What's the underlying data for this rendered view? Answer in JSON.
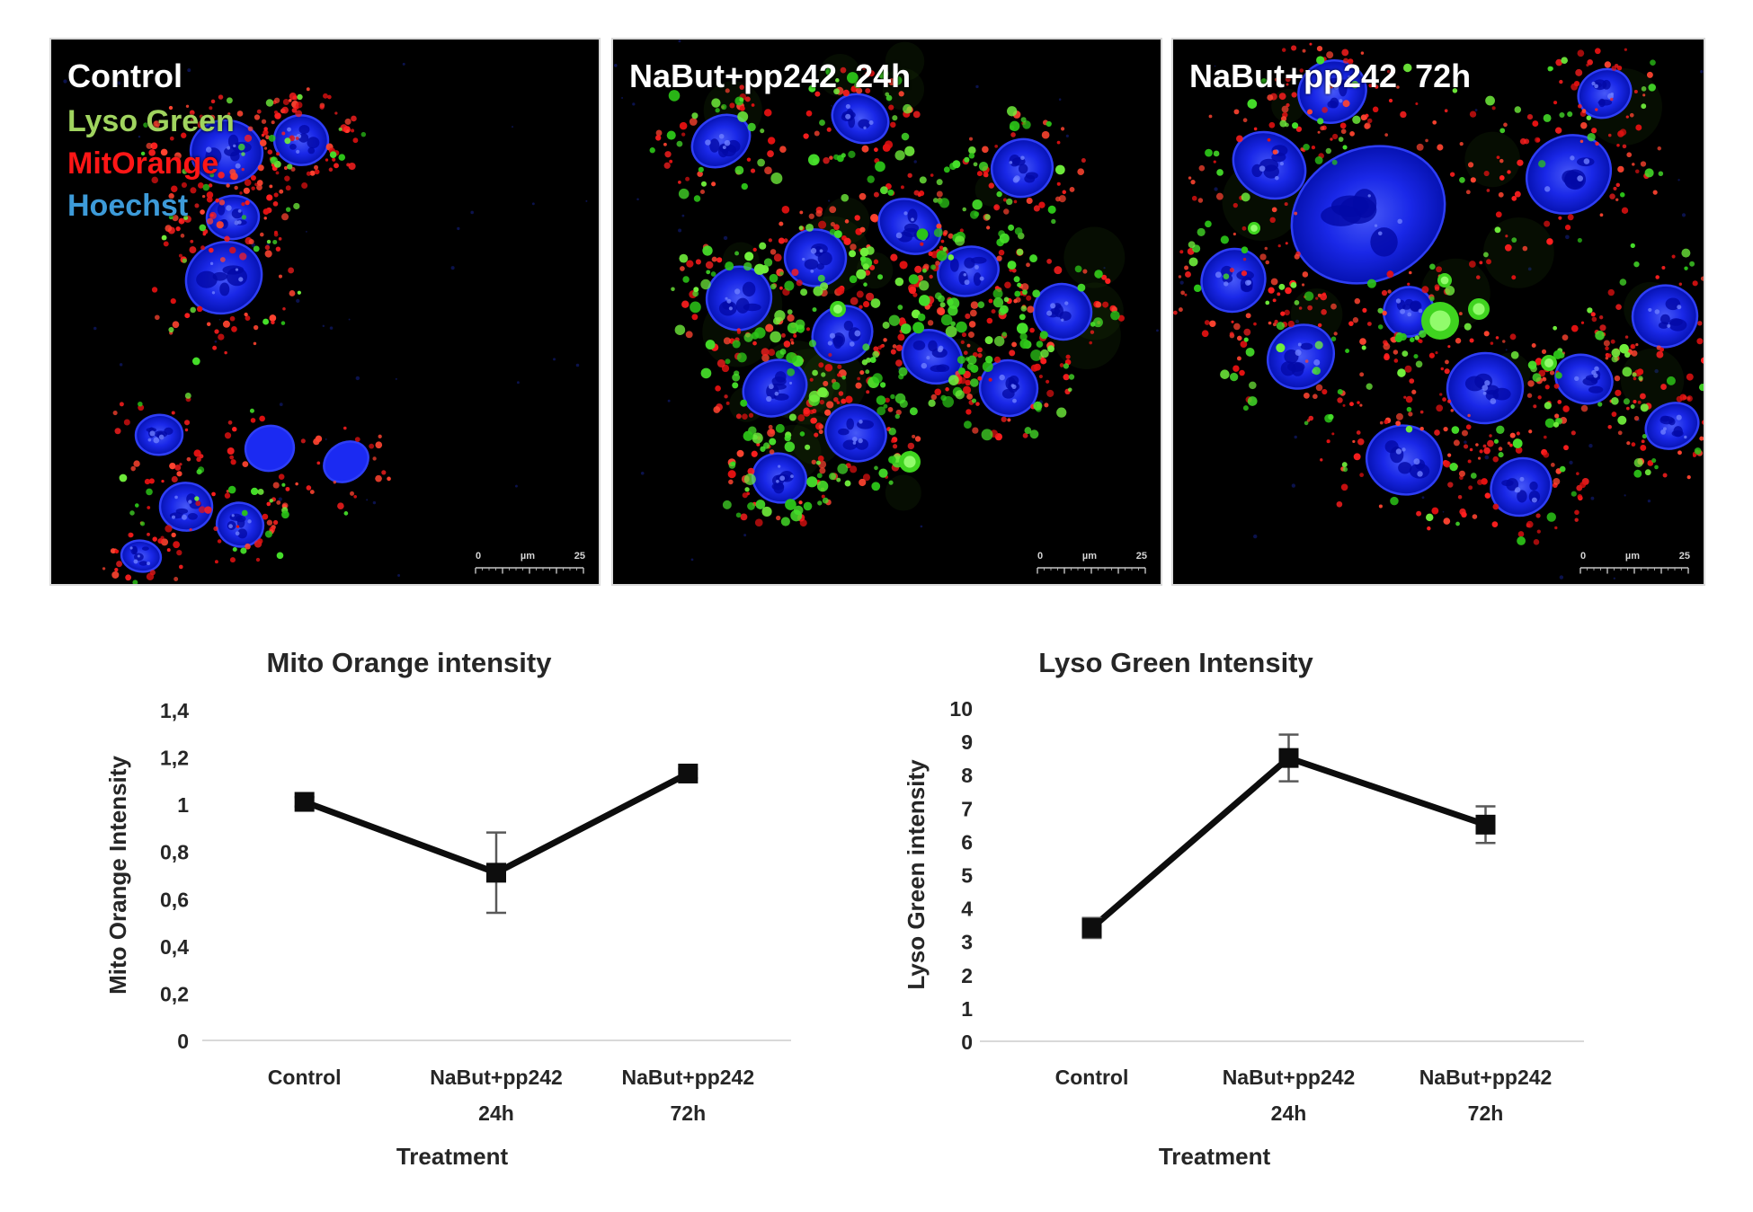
{
  "figure": {
    "panels": [
      {
        "title": "Control",
        "legend": [
          {
            "label": "Lyso Green",
            "color": "#a0d45f"
          },
          {
            "label": "MitOrange",
            "color": "#ff1616"
          },
          {
            "label": "Hoechst",
            "color": "#3d9bd9"
          }
        ],
        "scale_bar": {
          "start": "0",
          "unit": "µm",
          "end": "25"
        }
      },
      {
        "title": "NaBut+pp242  24h",
        "legend": [],
        "scale_bar": {
          "start": "0",
          "unit": "µm",
          "end": "25"
        }
      },
      {
        "title": "NaBut+pp242  72h",
        "legend": [],
        "scale_bar": {
          "start": "0",
          "unit": "µm",
          "end": "25"
        }
      }
    ]
  },
  "chart_data": [
    {
      "type": "line",
      "title": "Mito Orange intensity",
      "categories": [
        [
          "Control"
        ],
        [
          "NaBut+pp242",
          "24h"
        ],
        [
          "NaBut+pp242",
          "72h"
        ]
      ],
      "series": [
        {
          "name": "Mito Orange Intensity",
          "values": [
            1.01,
            0.71,
            1.13
          ],
          "error_bars": [
            0.02,
            0.17,
            0.02
          ]
        }
      ],
      "xlabel": "Treatment",
      "ylabel": "Mito Orange Intensity",
      "ylim": [
        0,
        1.4
      ],
      "ytick_labels": [
        "0",
        "0,2",
        "0,4",
        "0,6",
        "0,8",
        "1",
        "1,2",
        "1,4"
      ],
      "grid": false,
      "legend_position": "none",
      "marker": "square",
      "line_color": "#0d0d0d",
      "error_bar_color": "#595959",
      "gridline_color": "#d9d9d9"
    },
    {
      "type": "line",
      "title": "Lyso Green Intensity",
      "categories": [
        [
          "Control"
        ],
        [
          "NaBut+pp242",
          "24h"
        ],
        [
          "NaBut+pp242",
          "72h"
        ]
      ],
      "series": [
        {
          "name": "Lyso Green intensity",
          "values": [
            3.4,
            8.5,
            6.5
          ],
          "error_bars": [
            0.3,
            0.7,
            0.55
          ]
        }
      ],
      "xlabel": "Treatment",
      "ylabel": "Lyso Green intensity",
      "ylim": [
        0,
        10
      ],
      "ytick_labels": [
        "0",
        "1",
        "2",
        "3",
        "4",
        "5",
        "6",
        "7",
        "8",
        "9",
        "10"
      ],
      "grid": false,
      "legend_position": "none",
      "marker": "square",
      "line_color": "#0d0d0d",
      "error_bar_color": "#595959",
      "gridline_color": "#d9d9d9"
    }
  ]
}
